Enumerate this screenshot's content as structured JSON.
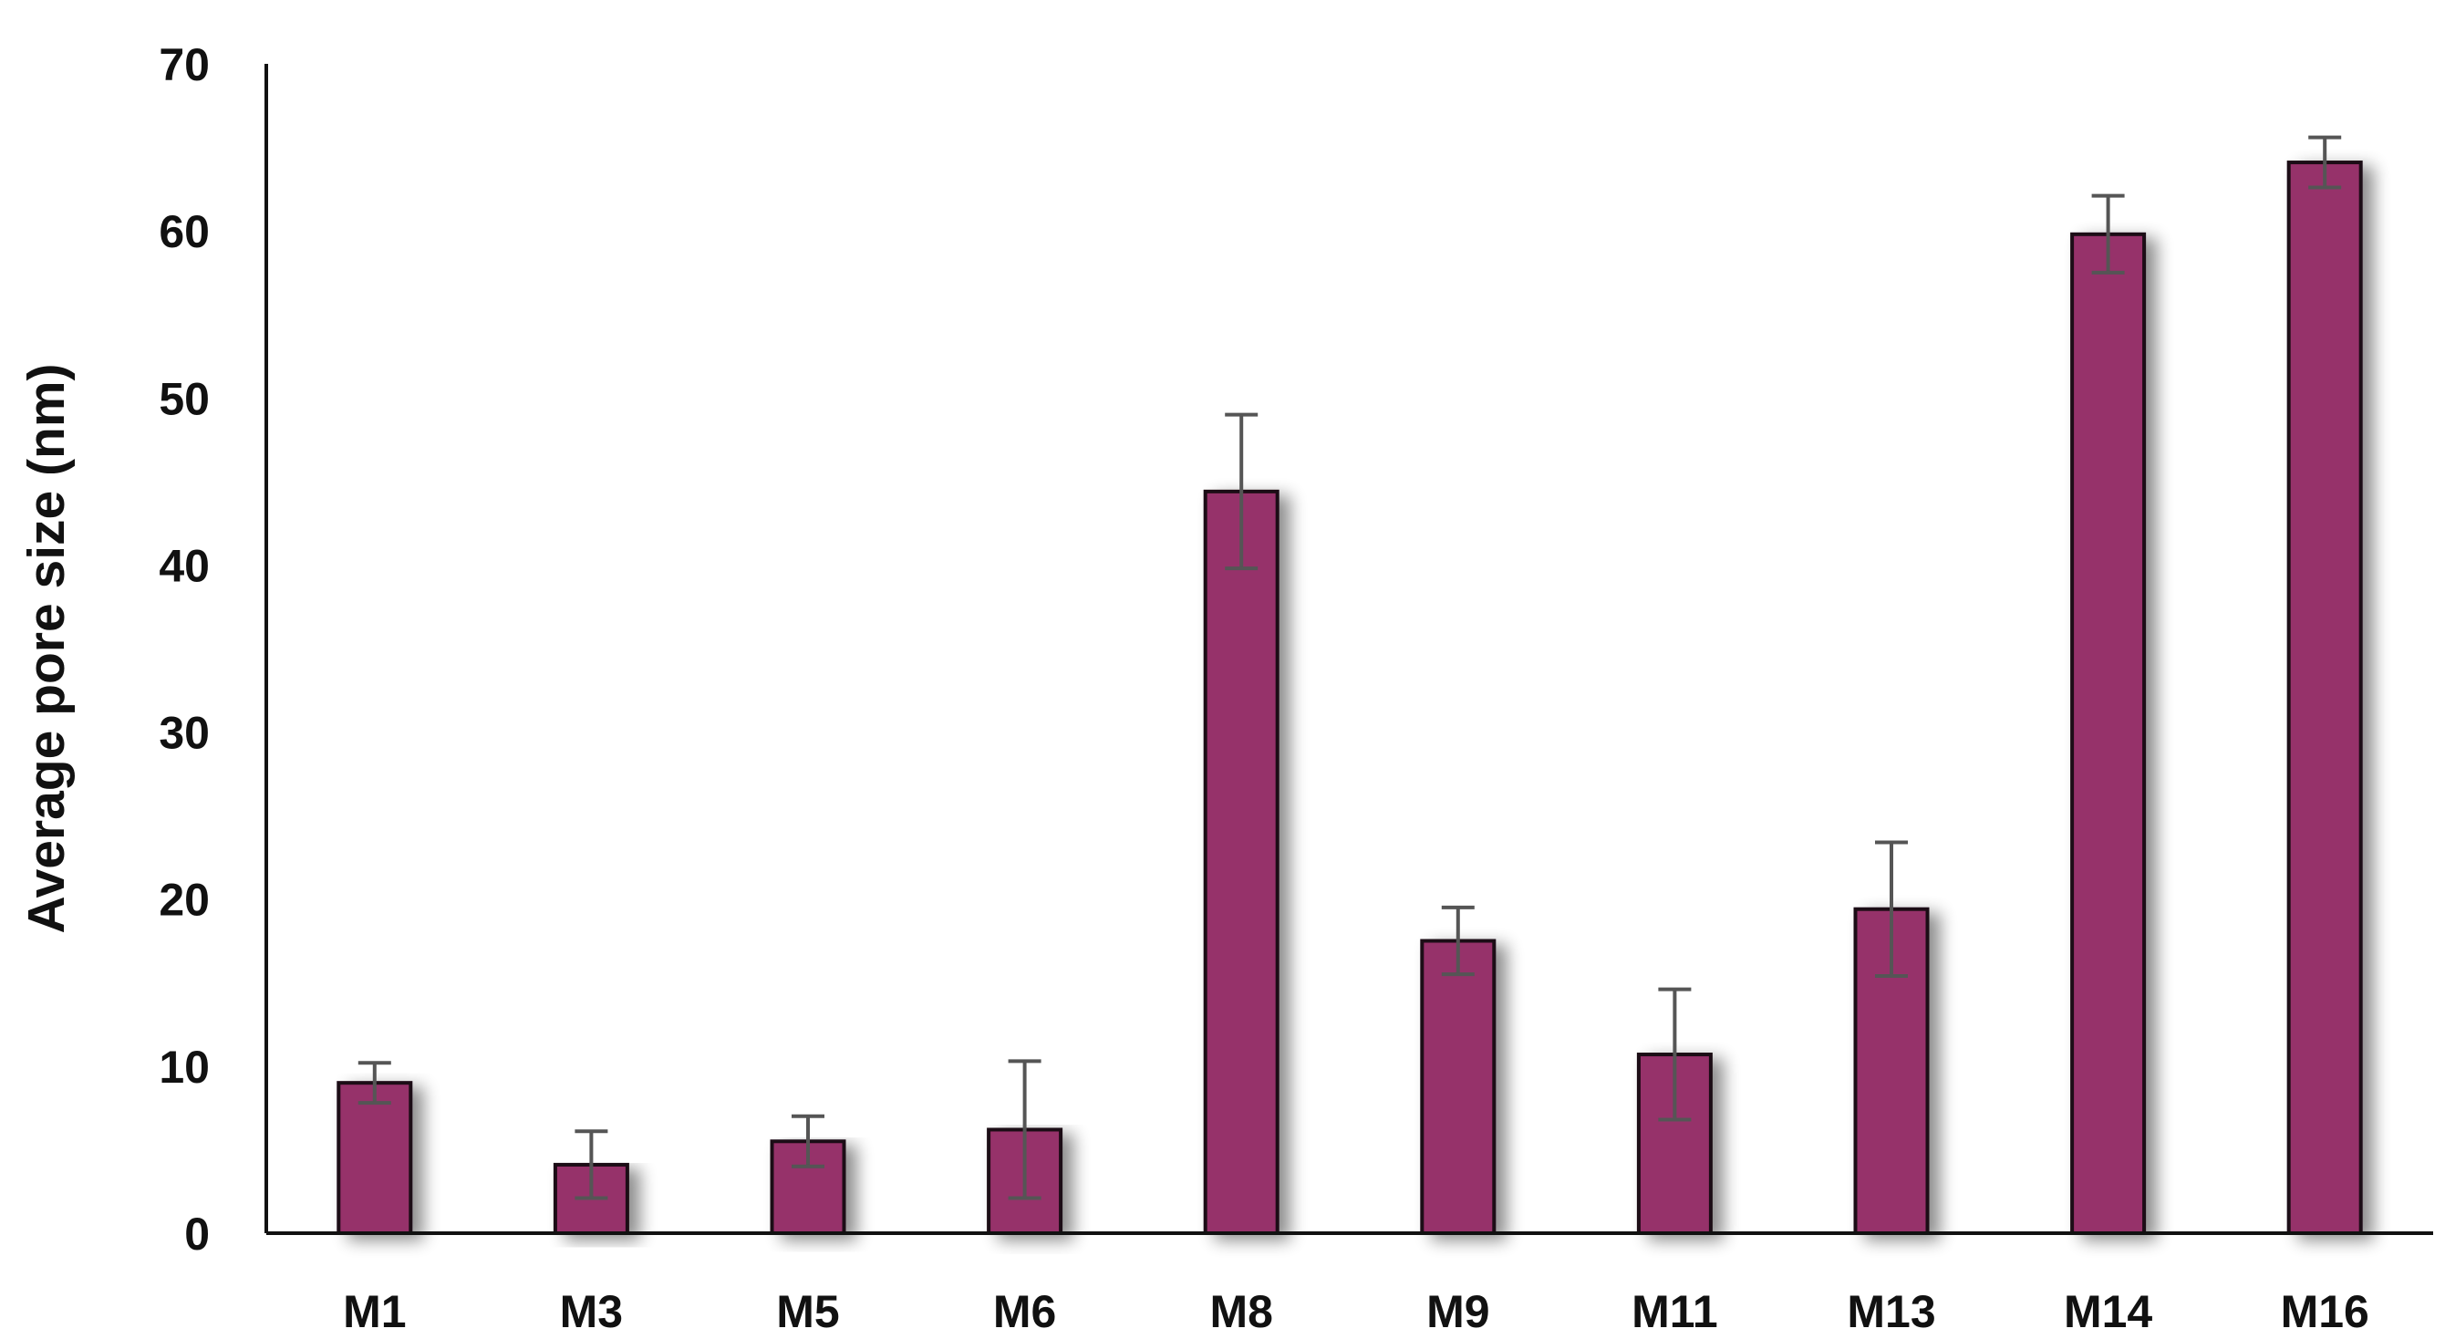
{
  "chart_data": {
    "type": "bar",
    "title": "",
    "xlabel": "",
    "ylabel": "Average pore size (nm)",
    "categories": [
      "M1",
      "M3",
      "M5",
      "M6",
      "M8",
      "M9",
      "M11",
      "M13",
      "M14",
      "M16"
    ],
    "values": [
      9,
      4.1,
      5.5,
      6.2,
      44.4,
      17.5,
      10.7,
      19.4,
      59.8,
      64.1
    ],
    "error": [
      1.2,
      2,
      1.5,
      4.1,
      4.6,
      2,
      3.9,
      4,
      2.3,
      1.5
    ],
    "ylim": [
      0,
      70
    ],
    "yticks": [
      0,
      10,
      20,
      30,
      40,
      50,
      60,
      70
    ],
    "grid": false,
    "legend": "none",
    "bar_color": "#96306A",
    "bar_edge_color": "#1A0A12",
    "error_bar_color": "#555555",
    "axis_color": "#111111"
  }
}
